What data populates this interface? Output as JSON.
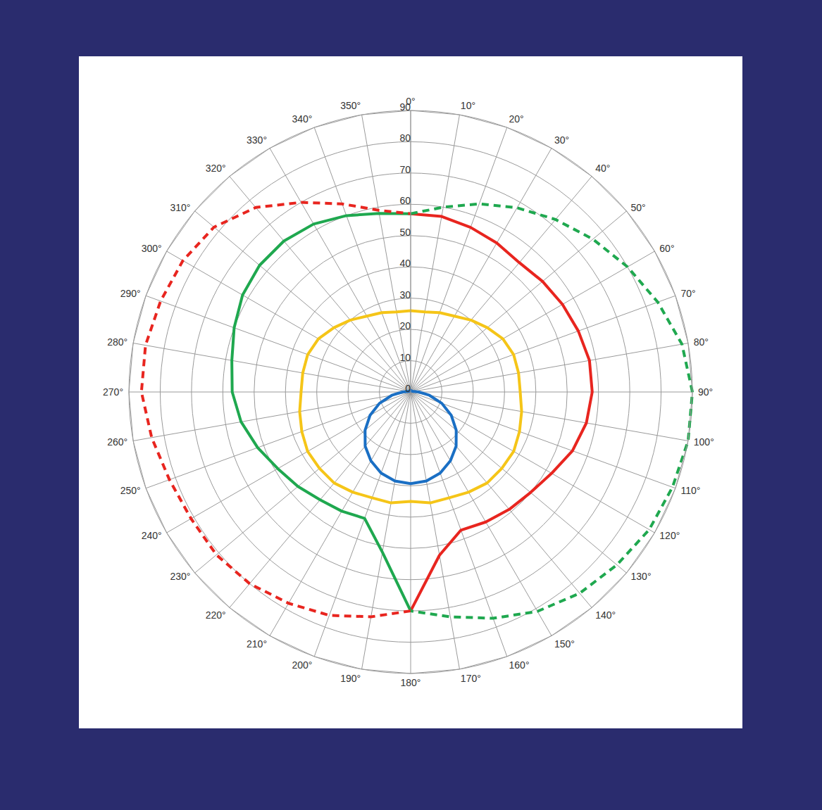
{
  "chart_data": {
    "type": "radar",
    "grid": true,
    "categories": [
      "0°",
      "10°",
      "20°",
      "30°",
      "40°",
      "50°",
      "60°",
      "70°",
      "80°",
      "90°",
      "100°",
      "110°",
      "120°",
      "130°",
      "140°",
      "150°",
      "160°",
      "170°",
      "180°",
      "190°",
      "200°",
      "210°",
      "220°",
      "230°",
      "240°",
      "250°",
      "260°",
      "270°",
      "280°",
      "290°",
      "300°",
      "310°",
      "320°",
      "330°",
      "340°",
      "350°"
    ],
    "ylim": [
      0,
      90
    ],
    "yticks": [
      0,
      10,
      20,
      30,
      40,
      50,
      60,
      70,
      80,
      90
    ],
    "series": [
      {
        "color": "#e8251f",
        "line_style": "solid",
        "values": [
          57,
          57,
          56,
          55,
          54,
          55,
          56,
          57,
          58,
          58,
          57,
          55,
          52,
          50,
          49,
          48,
          47,
          53,
          70,
          null,
          null,
          null,
          null,
          null,
          null,
          null,
          null,
          null,
          null,
          null,
          null,
          null,
          null,
          null,
          null,
          null
        ]
      },
      {
        "color": "#1fa84f",
        "line_style": "solid",
        "values": [
          57,
          null,
          null,
          null,
          null,
          null,
          null,
          null,
          null,
          null,
          null,
          null,
          null,
          null,
          null,
          null,
          null,
          null,
          70,
          52,
          43,
          44,
          45,
          47,
          49,
          52,
          55,
          57,
          58,
          60,
          62,
          63,
          63,
          62,
          60,
          58
        ]
      },
      {
        "color": "#e8251f",
        "line_style": "dashed",
        "values": [
          57,
          null,
          null,
          null,
          null,
          null,
          null,
          null,
          null,
          null,
          null,
          null,
          null,
          null,
          null,
          null,
          null,
          null,
          70,
          73,
          76,
          78,
          80,
          81,
          81,
          82,
          84,
          86,
          86,
          85,
          84,
          82,
          77,
          70,
          64,
          59
        ]
      },
      {
        "color": "#1fa84f",
        "line_style": "dashed",
        "values": [
          57,
          60,
          64,
          68,
          72,
          76,
          80,
          84,
          88,
          90,
          90,
          89,
          88,
          86,
          84,
          81,
          77,
          73,
          70,
          null,
          null,
          null,
          null,
          null,
          null,
          null,
          null,
          null,
          null,
          null,
          null,
          null,
          null,
          null,
          null,
          null
        ]
      },
      {
        "color": "#f5c518",
        "line_style": "solid",
        "values": [
          26,
          26,
          27,
          28,
          30,
          32,
          34,
          35,
          35,
          35,
          36,
          37,
          38,
          38,
          38,
          37,
          36,
          36,
          35,
          36,
          36,
          37,
          38,
          38,
          38,
          37,
          36,
          35,
          35,
          35,
          34,
          32,
          30,
          28,
          27,
          26
        ]
      },
      {
        "color": "#1a6fc4",
        "line_style": "solid",
        "values": [
          0.5,
          0.5,
          0.5,
          0.5,
          0.5,
          0.5,
          0.5,
          0.6,
          1.1,
          2.6,
          6.1,
          10.6,
          15,
          19,
          22.6,
          25.4,
          27.6,
          28.9,
          29.3,
          28.9,
          27.6,
          25.4,
          22.6,
          19,
          15,
          10.6,
          6.1,
          2.6,
          1.1,
          0.6,
          0.5,
          0.5,
          0.5,
          0.5,
          0.5,
          0.5
        ]
      }
    ]
  }
}
